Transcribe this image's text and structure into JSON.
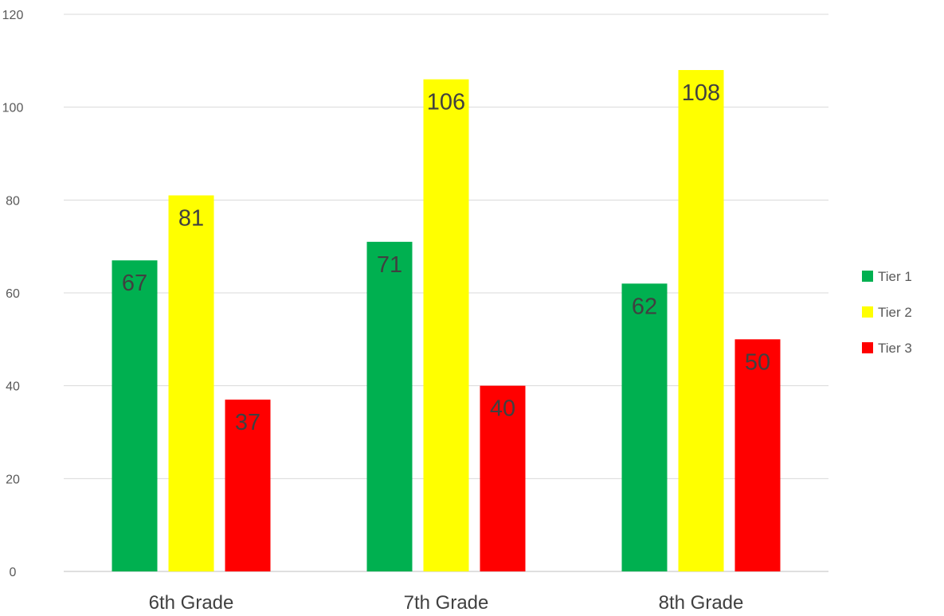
{
  "chart_data": {
    "type": "bar",
    "categories": [
      "6th Grade",
      "7th Grade",
      "8th Grade"
    ],
    "series": [
      {
        "name": "Tier 1",
        "color": "#00b050",
        "values": [
          67,
          71,
          62
        ]
      },
      {
        "name": "Tier 2",
        "color": "#ffff00",
        "values": [
          81,
          106,
          108
        ]
      },
      {
        "name": "Tier 3",
        "color": "#ff0000",
        "values": [
          37,
          40,
          50
        ]
      }
    ],
    "ylim": [
      0,
      120
    ],
    "yticks": [
      0,
      20,
      40,
      60,
      80,
      100,
      120
    ],
    "grid": true,
    "legend": "right",
    "data_label_color": "#404040"
  }
}
